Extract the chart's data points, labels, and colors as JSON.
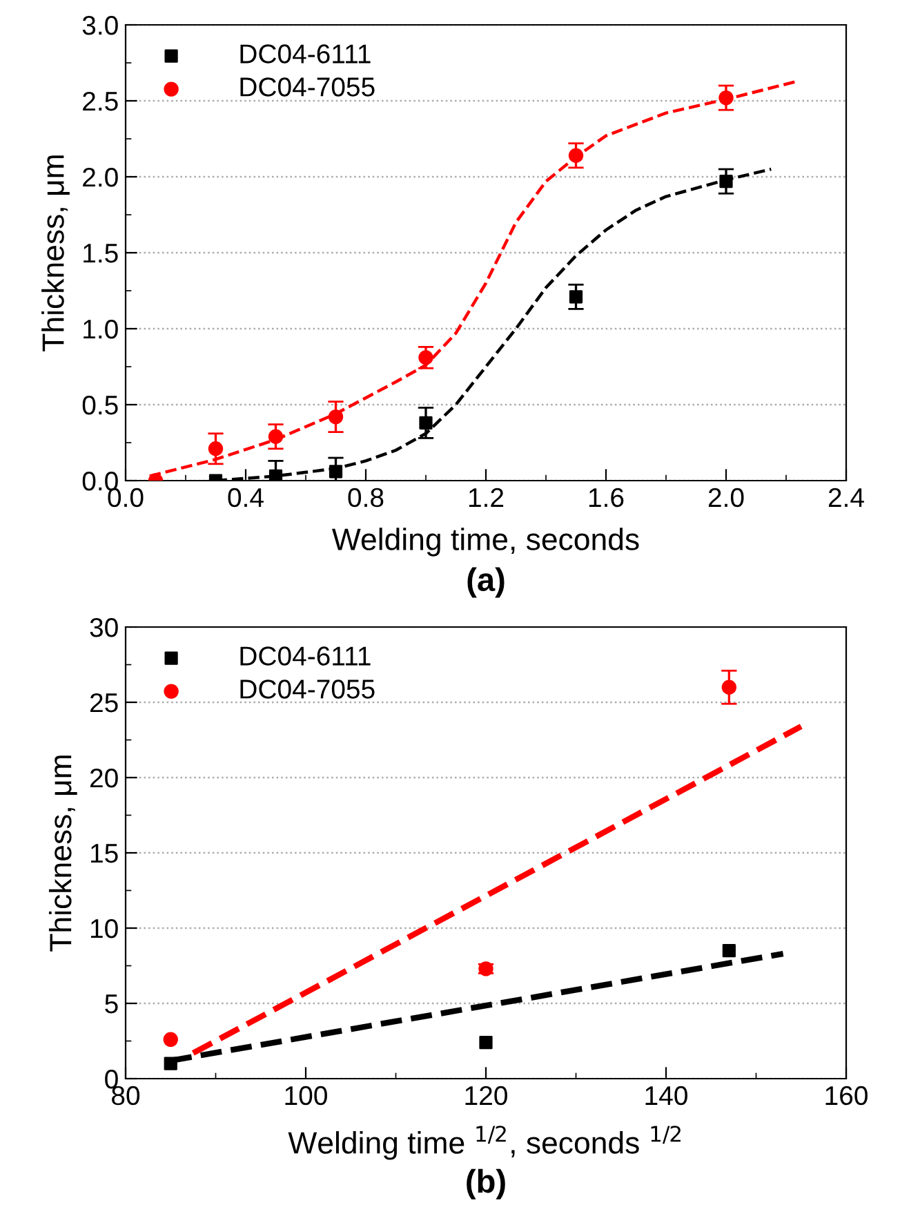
{
  "chart_data": [
    {
      "type": "scatter",
      "xlabel": "Welding time, seconds",
      "ylabel": "Thickness, μm",
      "annotations": [
        "(a)"
      ],
      "xlim": [
        0.0,
        2.4
      ],
      "xticks": [
        {
          "value": 0,
          "label": "0.0"
        },
        0.4,
        0.8,
        1.2,
        1.6,
        {
          "value": 2,
          "label": "2.0"
        },
        2.4
      ],
      "ylim": [
        0,
        3
      ],
      "yticks": [
        {
          "value": 0,
          "label": "0.0"
        },
        0.5,
        {
          "value": 1,
          "label": "1.0"
        },
        1.5,
        {
          "value": 2,
          "label": "2.0"
        },
        2.5,
        {
          "value": 3,
          "label": "3.0"
        }
      ],
      "grid": "y",
      "legend": "top left",
      "series": [
        {
          "name": "DC04-6111",
          "color": "#000000",
          "marker": "square",
          "x": [
            0.3,
            0.5,
            0.7,
            1.0,
            1.5,
            2.0
          ],
          "values": [
            0.0,
            0.03,
            0.06,
            0.38,
            1.21,
            1.97
          ],
          "errors": [
            null,
            0.1,
            0.09,
            0.1,
            0.08,
            0.08
          ]
        },
        {
          "name": "DC04-7055",
          "color": "#ff0000",
          "marker": "circle",
          "x": [
            0.1,
            0.3,
            0.5,
            0.7,
            1.0,
            1.5,
            2.0
          ],
          "values": [
            0.0,
            0.21,
            0.29,
            0.42,
            0.81,
            2.14,
            2.52
          ],
          "errors": [
            null,
            0.1,
            0.08,
            0.1,
            0.07,
            0.08,
            0.08
          ]
        },
        {
          "type": "line",
          "line_style": "dashed",
          "marker": "none",
          "color": "#000000",
          "x": [
            0.3,
            0.5,
            0.7,
            0.8,
            0.9,
            1.0,
            1.1,
            1.2,
            1.3,
            1.4,
            1.5,
            1.6,
            1.7,
            1.8,
            2.0,
            2.15
          ],
          "values": [
            0.0,
            0.03,
            0.08,
            0.13,
            0.2,
            0.31,
            0.5,
            0.75,
            1.0,
            1.27,
            1.48,
            1.65,
            1.78,
            1.87,
            1.98,
            2.05
          ]
        },
        {
          "type": "line",
          "line_style": "dashed",
          "marker": "none",
          "color": "#ff0000",
          "x": [
            0.08,
            0.3,
            0.5,
            0.7,
            0.9,
            1.0,
            1.1,
            1.2,
            1.25,
            1.3,
            1.4,
            1.5,
            1.6,
            1.8,
            2.0,
            2.24
          ],
          "values": [
            0.03,
            0.14,
            0.27,
            0.44,
            0.65,
            0.76,
            0.97,
            1.3,
            1.5,
            1.7,
            1.97,
            2.13,
            2.27,
            2.42,
            2.51,
            2.63
          ]
        }
      ]
    },
    {
      "type": "scatter",
      "xlabel": "Welding time $^{1/2}$, seconds $^{1/2}$",
      "ylabel": "Thickness, μm",
      "annotations": [
        "(b)"
      ],
      "xlim": [
        80,
        160
      ],
      "xticks": [
        80,
        100,
        120,
        140,
        160
      ],
      "ylim": [
        0,
        30
      ],
      "yticks": [
        0,
        5,
        10,
        15,
        20,
        25,
        30
      ],
      "grid": "y",
      "legend": "top left",
      "series": [
        {
          "name": "DC04-6111",
          "color": "#000000",
          "marker": "square",
          "x": [
            85,
            120,
            147
          ],
          "values": [
            1.0,
            2.4,
            8.5
          ],
          "errors": [
            null,
            null,
            null
          ]
        },
        {
          "name": "DC04-7055",
          "color": "#ff0000",
          "marker": "circle",
          "x": [
            85,
            120,
            147
          ],
          "values": [
            2.6,
            7.3,
            26.0
          ],
          "errors": [
            null,
            0.3,
            1.1
          ]
        },
        {
          "type": "line",
          "line_style": "dashed",
          "marker": "none",
          "color": "#000000",
          "x": [
            85,
            153
          ],
          "values": [
            1.2,
            8.3
          ]
        },
        {
          "type": "line",
          "line_style": "dashed",
          "marker": "none",
          "color": "#ff0000",
          "x": [
            87.5,
            155
          ],
          "values": [
            1.7,
            23.4
          ]
        }
      ]
    }
  ]
}
